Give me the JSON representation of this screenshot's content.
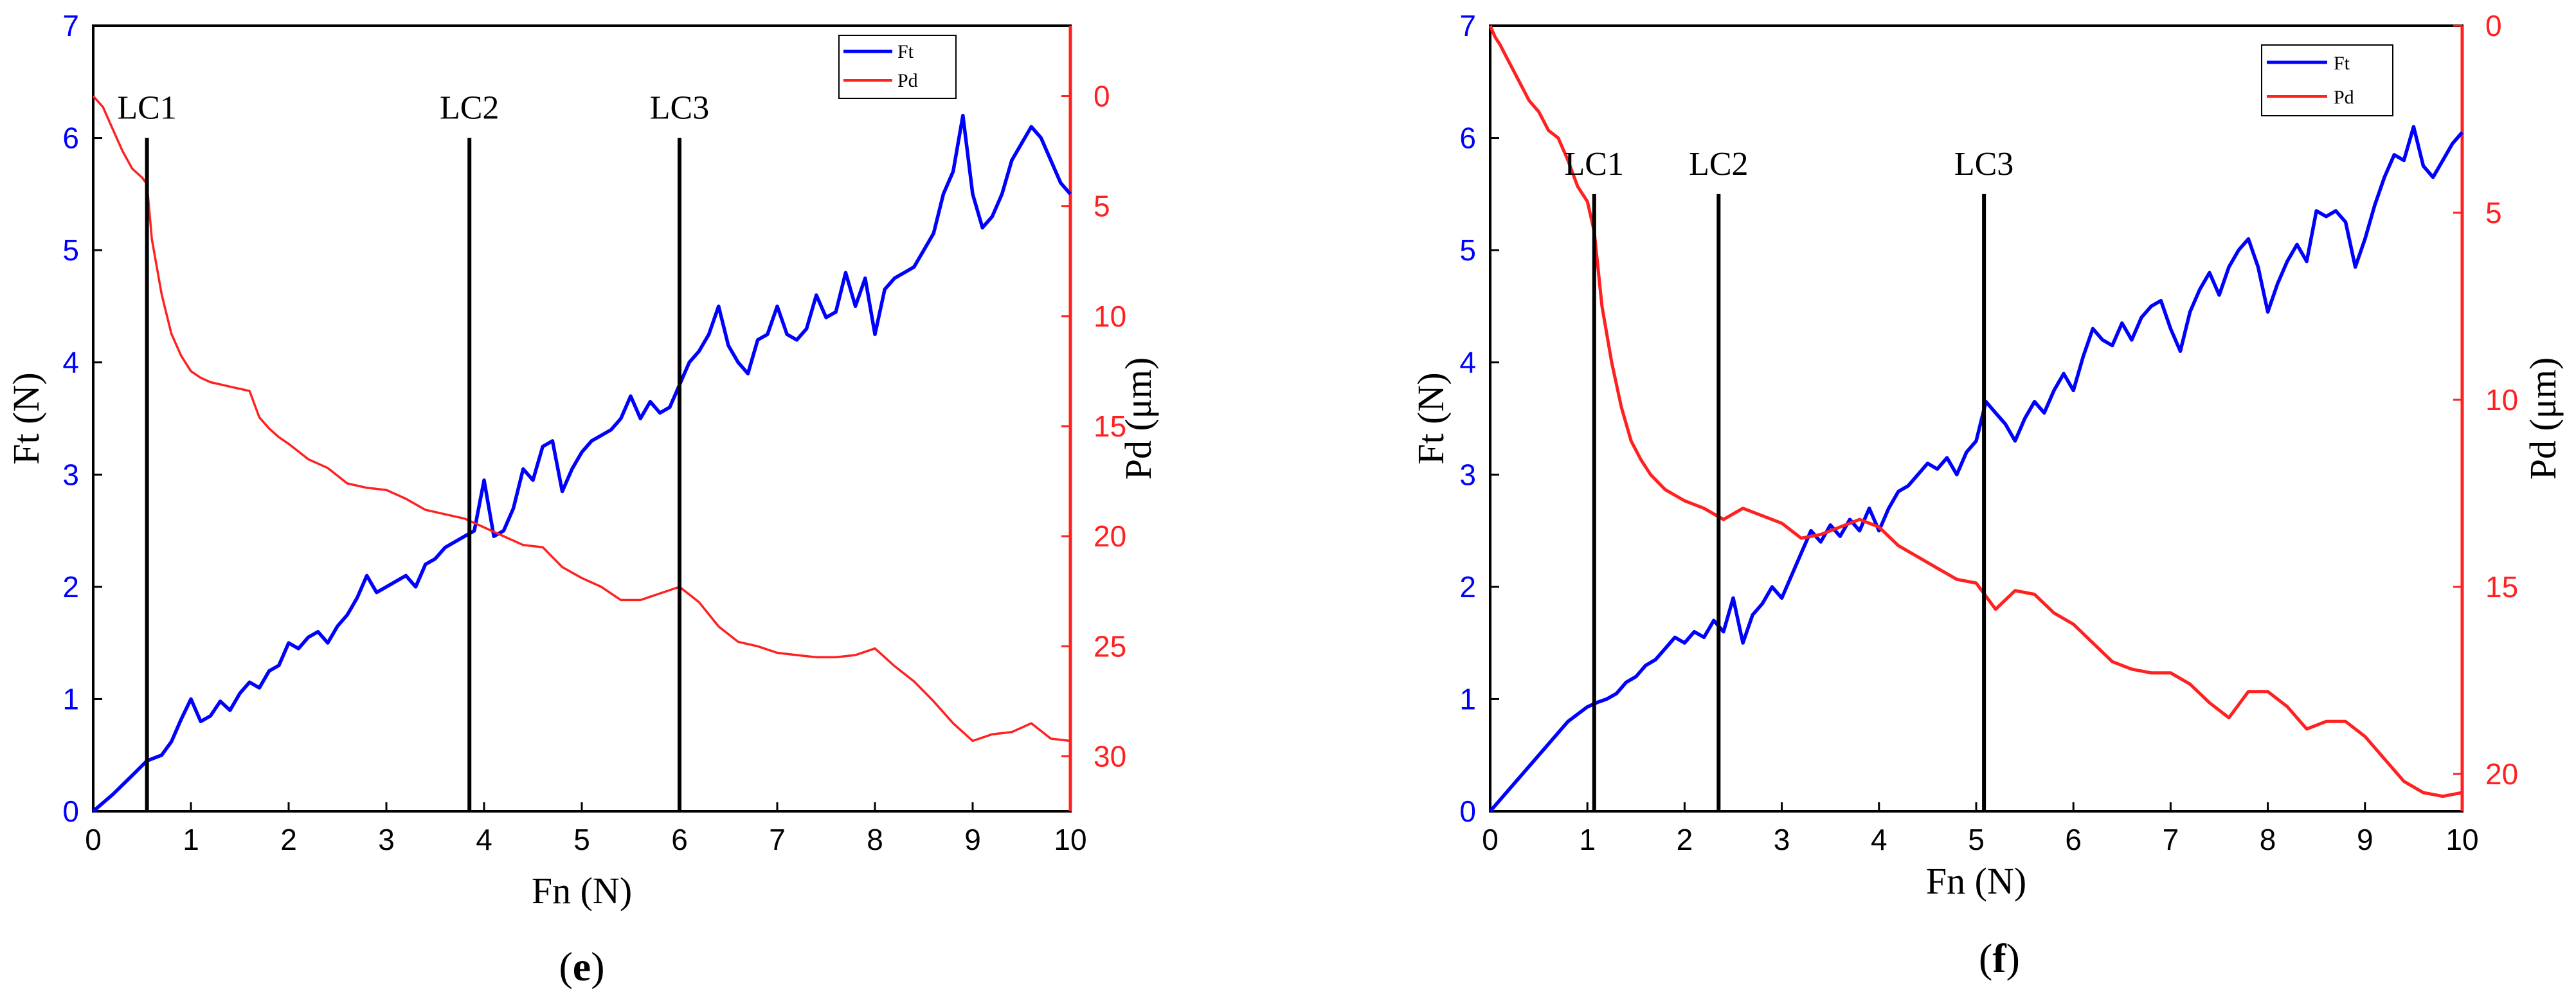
{
  "colors": {
    "ft": "#0000ff",
    "pd": "#ff2020",
    "marker": "#000000",
    "frame": "#000000"
  },
  "chart_data": [
    {
      "panel_id": "e",
      "panel_open": "(",
      "panel_letter": "e",
      "panel_close": ")",
      "type": "line",
      "title": "",
      "xlabel": "Fn (N)",
      "ylabel_left": "Ft (N)",
      "ylabel_right": "Pd (μm)",
      "xlim": [
        0,
        10
      ],
      "ylim_left": [
        0,
        7
      ],
      "ylim_right": [
        -3.2,
        32.5
      ],
      "right_axis_inverted": true,
      "x_ticks": [
        0,
        1,
        2,
        3,
        4,
        5,
        6,
        7,
        8,
        9,
        10
      ],
      "y_left_ticks": [
        0,
        1,
        2,
        3,
        4,
        5,
        6,
        7
      ],
      "y_right_ticks": [
        0,
        5,
        10,
        15,
        20,
        25,
        30
      ],
      "legend": {
        "placement": "top-right",
        "entries": [
          "Ft",
          "Pd"
        ]
      },
      "critical_loads": [
        {
          "label": "LC1",
          "x": 0.55,
          "top": 6.0
        },
        {
          "label": "LC2",
          "x": 3.85,
          "top": 6.0
        },
        {
          "label": "LC3",
          "x": 6.0,
          "top": 6.0
        }
      ],
      "series": [
        {
          "name": "Ft",
          "axis": "left",
          "x": [
            0,
            0.2,
            0.4,
            0.55,
            0.7,
            0.8,
            0.9,
            1.0,
            1.1,
            1.2,
            1.3,
            1.4,
            1.5,
            1.6,
            1.7,
            1.8,
            1.9,
            2.0,
            2.1,
            2.2,
            2.3,
            2.4,
            2.5,
            2.6,
            2.7,
            2.8,
            2.9,
            3.0,
            3.1,
            3.2,
            3.3,
            3.4,
            3.5,
            3.6,
            3.7,
            3.8,
            3.9,
            4.0,
            4.1,
            4.2,
            4.3,
            4.4,
            4.5,
            4.6,
            4.7,
            4.8,
            4.9,
            5.0,
            5.1,
            5.2,
            5.3,
            5.4,
            5.5,
            5.6,
            5.7,
            5.8,
            5.9,
            6.0,
            6.1,
            6.2,
            6.3,
            6.4,
            6.5,
            6.6,
            6.7,
            6.8,
            6.9,
            7.0,
            7.1,
            7.2,
            7.3,
            7.4,
            7.5,
            7.6,
            7.7,
            7.8,
            7.9,
            8.0,
            8.1,
            8.2,
            8.3,
            8.4,
            8.5,
            8.6,
            8.7,
            8.8,
            8.9,
            9.0,
            9.1,
            9.2,
            9.3,
            9.4,
            9.5,
            9.6,
            9.7,
            9.8,
            9.9,
            10.0
          ],
          "values": [
            0.0,
            0.15,
            0.32,
            0.45,
            0.5,
            0.62,
            0.82,
            1.0,
            0.8,
            0.85,
            0.98,
            0.9,
            1.05,
            1.15,
            1.1,
            1.25,
            1.3,
            1.5,
            1.45,
            1.55,
            1.6,
            1.5,
            1.65,
            1.75,
            1.9,
            2.1,
            1.95,
            2.0,
            2.05,
            2.1,
            2.0,
            2.2,
            2.25,
            2.35,
            2.4,
            2.45,
            2.5,
            2.95,
            2.45,
            2.5,
            2.7,
            3.05,
            2.95,
            3.25,
            3.3,
            2.85,
            3.05,
            3.2,
            3.3,
            3.35,
            3.4,
            3.5,
            3.7,
            3.5,
            3.65,
            3.55,
            3.6,
            3.8,
            4.0,
            4.1,
            4.25,
            4.5,
            4.15,
            4.0,
            3.9,
            4.2,
            4.25,
            4.5,
            4.25,
            4.2,
            4.3,
            4.6,
            4.4,
            4.45,
            4.8,
            4.5,
            4.75,
            4.25,
            4.65,
            4.75,
            4.8,
            4.85,
            5.0,
            5.15,
            5.5,
            5.7,
            6.2,
            5.5,
            5.2,
            5.3,
            5.5,
            5.8,
            5.95,
            6.1,
            6.0,
            5.8,
            5.6,
            5.5
          ]
        },
        {
          "name": "Pd",
          "axis": "right",
          "x": [
            0,
            0.1,
            0.2,
            0.3,
            0.4,
            0.5,
            0.55,
            0.6,
            0.7,
            0.8,
            0.9,
            1.0,
            1.1,
            1.2,
            1.3,
            1.4,
            1.5,
            1.6,
            1.7,
            1.8,
            1.9,
            2.0,
            2.2,
            2.4,
            2.6,
            2.8,
            3.0,
            3.2,
            3.4,
            3.6,
            3.8,
            4.0,
            4.2,
            4.4,
            4.6,
            4.8,
            5.0,
            5.2,
            5.4,
            5.6,
            5.8,
            6.0,
            6.2,
            6.4,
            6.6,
            6.8,
            7.0,
            7.2,
            7.4,
            7.6,
            7.8,
            8.0,
            8.2,
            8.4,
            8.6,
            8.8,
            9.0,
            9.2,
            9.4,
            9.6,
            9.8,
            10.0
          ],
          "values": [
            0,
            0.5,
            1.5,
            2.5,
            3.3,
            3.7,
            4.0,
            6.5,
            9.0,
            10.8,
            11.8,
            12.5,
            12.8,
            13.0,
            13.1,
            13.2,
            13.3,
            13.4,
            14.6,
            15.1,
            15.5,
            15.8,
            16.5,
            16.9,
            17.6,
            17.8,
            17.9,
            18.3,
            18.8,
            19.0,
            19.2,
            19.6,
            20.0,
            20.4,
            20.5,
            21.4,
            21.9,
            22.3,
            22.9,
            22.9,
            22.6,
            22.3,
            23.0,
            24.1,
            24.8,
            25.0,
            25.3,
            25.4,
            25.5,
            25.5,
            25.4,
            25.1,
            25.9,
            26.6,
            27.5,
            28.5,
            29.3,
            29.0,
            28.9,
            28.5,
            29.2,
            29.3
          ]
        }
      ]
    },
    {
      "panel_id": "f",
      "panel_open": "(",
      "panel_letter": "f",
      "panel_close": ")",
      "type": "line",
      "title": "",
      "xlabel": "Fn (N)",
      "ylabel_left": "Ft (N)",
      "ylabel_right": "Pd (μm)",
      "xlim": [
        0,
        10
      ],
      "ylim_left": [
        0,
        7
      ],
      "ylim_right": [
        0,
        21
      ],
      "right_axis_inverted": true,
      "x_ticks": [
        0,
        1,
        2,
        3,
        4,
        5,
        6,
        7,
        8,
        9,
        10
      ],
      "y_left_ticks": [
        0,
        1,
        2,
        3,
        4,
        5,
        6,
        7
      ],
      "y_right_ticks": [
        0,
        5,
        10,
        15,
        20
      ],
      "legend": {
        "placement": "top-right",
        "entries": [
          "Ft",
          "Pd"
        ]
      },
      "critical_loads": [
        {
          "label": "LC1",
          "x": 1.07,
          "top": 5.5
        },
        {
          "label": "LC2",
          "x": 2.35,
          "top": 5.5
        },
        {
          "label": "LC3",
          "x": 5.08,
          "top": 5.5
        }
      ],
      "series": [
        {
          "name": "Ft",
          "axis": "left",
          "x": [
            0,
            0.2,
            0.4,
            0.6,
            0.8,
            1.0,
            1.1,
            1.2,
            1.3,
            1.4,
            1.5,
            1.6,
            1.7,
            1.8,
            1.9,
            2.0,
            2.1,
            2.2,
            2.3,
            2.4,
            2.5,
            2.6,
            2.7,
            2.8,
            2.9,
            3.0,
            3.1,
            3.2,
            3.3,
            3.4,
            3.5,
            3.6,
            3.7,
            3.8,
            3.9,
            4.0,
            4.1,
            4.2,
            4.3,
            4.4,
            4.5,
            4.6,
            4.7,
            4.8,
            4.9,
            5.0,
            5.1,
            5.2,
            5.3,
            5.4,
            5.5,
            5.6,
            5.7,
            5.8,
            5.9,
            6.0,
            6.1,
            6.2,
            6.3,
            6.4,
            6.5,
            6.6,
            6.7,
            6.8,
            6.9,
            7.0,
            7.1,
            7.2,
            7.3,
            7.4,
            7.5,
            7.6,
            7.7,
            7.8,
            7.9,
            8.0,
            8.1,
            8.2,
            8.3,
            8.4,
            8.5,
            8.6,
            8.7,
            8.8,
            8.9,
            9.0,
            9.1,
            9.2,
            9.3,
            9.4,
            9.5,
            9.6,
            9.7,
            9.8,
            9.9,
            10.0
          ],
          "values": [
            0.0,
            0.2,
            0.4,
            0.6,
            0.8,
            0.93,
            0.97,
            1.0,
            1.05,
            1.15,
            1.2,
            1.3,
            1.35,
            1.45,
            1.55,
            1.5,
            1.6,
            1.55,
            1.7,
            1.6,
            1.9,
            1.5,
            1.75,
            1.85,
            2.0,
            1.9,
            2.1,
            2.3,
            2.5,
            2.4,
            2.55,
            2.45,
            2.6,
            2.5,
            2.7,
            2.5,
            2.7,
            2.85,
            2.9,
            3.0,
            3.1,
            3.05,
            3.15,
            3.0,
            3.2,
            3.3,
            3.65,
            3.55,
            3.45,
            3.3,
            3.5,
            3.65,
            3.55,
            3.75,
            3.9,
            3.75,
            4.05,
            4.3,
            4.2,
            4.15,
            4.35,
            4.2,
            4.4,
            4.5,
            4.55,
            4.3,
            4.1,
            4.45,
            4.65,
            4.8,
            4.6,
            4.85,
            5.0,
            5.1,
            4.85,
            4.45,
            4.7,
            4.9,
            5.05,
            4.9,
            5.35,
            5.3,
            5.35,
            5.25,
            4.85,
            5.1,
            5.4,
            5.65,
            5.85,
            5.8,
            6.1,
            5.75,
            5.65,
            5.8,
            5.95,
            6.05
          ]
        },
        {
          "name": "Pd",
          "axis": "right",
          "x": [
            0,
            0.05,
            0.1,
            0.2,
            0.3,
            0.4,
            0.5,
            0.6,
            0.7,
            0.8,
            0.9,
            1.0,
            1.07,
            1.15,
            1.25,
            1.35,
            1.45,
            1.55,
            1.65,
            1.8,
            2.0,
            2.2,
            2.4,
            2.6,
            2.8,
            3.0,
            3.2,
            3.4,
            3.6,
            3.8,
            4.0,
            4.2,
            4.4,
            4.6,
            4.8,
            5.0,
            5.2,
            5.4,
            5.6,
            5.8,
            6.0,
            6.2,
            6.4,
            6.6,
            6.8,
            7.0,
            7.2,
            7.4,
            7.6,
            7.8,
            8.0,
            8.2,
            8.4,
            8.6,
            8.8,
            9.0,
            9.2,
            9.4,
            9.6,
            9.8,
            10.0
          ],
          "values": [
            0,
            0.3,
            0.5,
            1.0,
            1.5,
            2.0,
            2.3,
            2.8,
            3.0,
            3.6,
            4.3,
            4.7,
            5.5,
            7.5,
            9.0,
            10.2,
            11.1,
            11.6,
            12.0,
            12.4,
            12.7,
            12.9,
            13.2,
            12.9,
            13.1,
            13.3,
            13.7,
            13.6,
            13.4,
            13.2,
            13.4,
            13.9,
            14.2,
            14.5,
            14.8,
            14.9,
            15.6,
            15.1,
            15.2,
            15.7,
            16.0,
            16.5,
            17.0,
            17.2,
            17.3,
            17.3,
            17.6,
            18.1,
            18.5,
            17.8,
            17.8,
            18.2,
            18.8,
            18.6,
            18.6,
            19.0,
            19.6,
            20.2,
            20.5,
            20.6,
            20.5
          ]
        }
      ]
    }
  ]
}
